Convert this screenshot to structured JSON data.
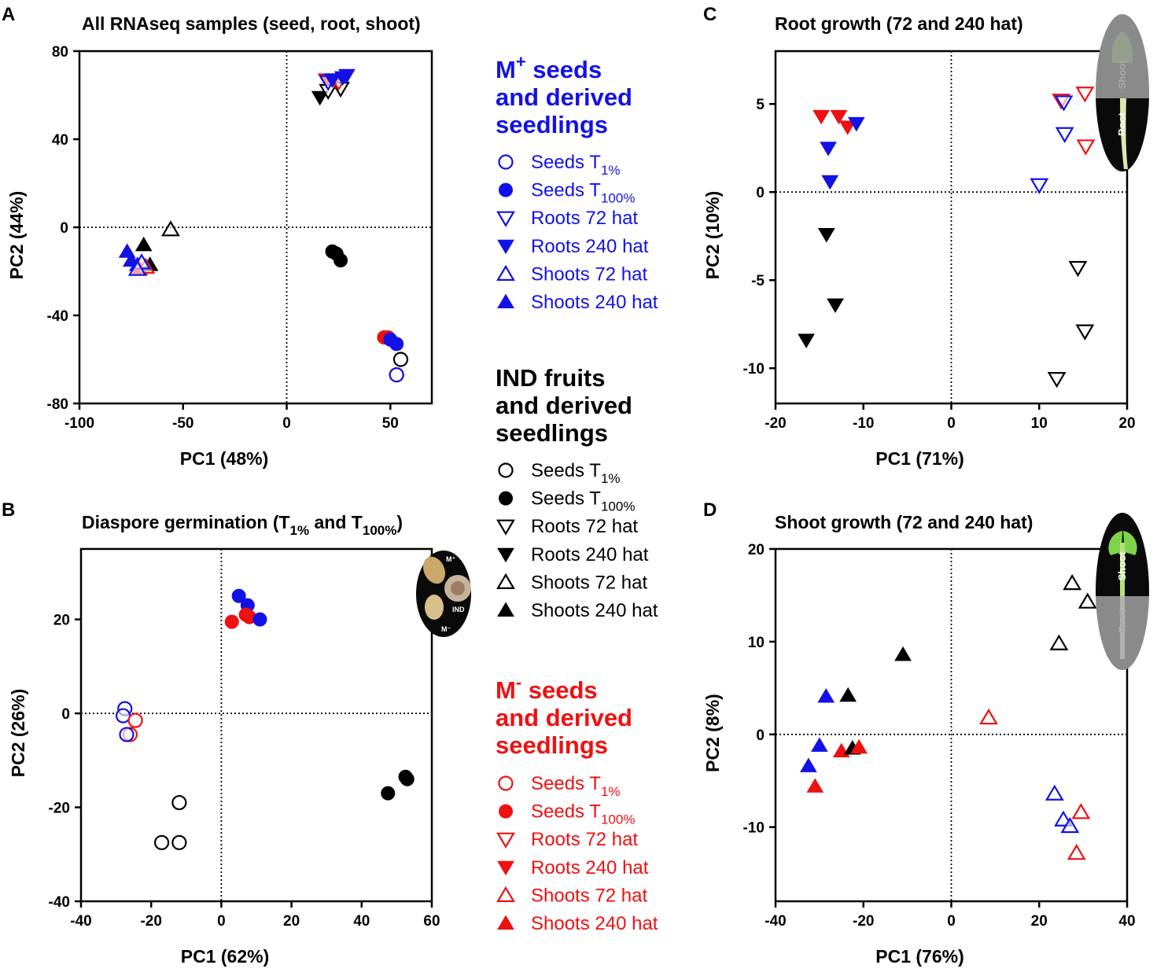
{
  "colors": {
    "mplus": "#1212e6",
    "mminus": "#ee1111",
    "ind": "#000000"
  },
  "panels": {
    "A": {
      "letter": "A",
      "title": "All RNAseq samples (seed, root, shoot)"
    },
    "B": {
      "letter": "B",
      "title_pre": "Diaspore germination (T",
      "title_sub1": "1%",
      "title_mid": " and T",
      "title_sub2": "100%",
      "title_post": ")"
    },
    "C": {
      "letter": "C",
      "title": "Root growth (72 and 240 hat)"
    },
    "D": {
      "letter": "D",
      "title": "Shoot growth (72 and 240 hat)"
    }
  },
  "insets": {
    "root_label": "Root",
    "shoot_label": "Shoot",
    "mplus_label": "M⁺",
    "ind_label": "IND",
    "mminus_label": "M⁻"
  },
  "legend": {
    "mplus": {
      "head1_pre": "M",
      "head1_sup": "+",
      "head1_post": " seeds",
      "head2": "and derived",
      "head3": "seedlings"
    },
    "ind": {
      "head1": "IND fruits",
      "head2": "and derived",
      "head3": "seedlings"
    },
    "mminus": {
      "head1_pre": "M",
      "head1_sup": "-",
      "head1_post": " seeds",
      "head2": "and derived",
      "head3": "seedlings"
    },
    "items": [
      {
        "marker": "circle-open",
        "pre": "Seeds T",
        "sub": "1%"
      },
      {
        "marker": "circle-filled",
        "pre": "Seeds T",
        "sub": "100%"
      },
      {
        "marker": "tri-down-open",
        "pre": "Roots 72 hat",
        "sub": ""
      },
      {
        "marker": "tri-down-filled",
        "pre": "Roots 240 hat",
        "sub": ""
      },
      {
        "marker": "tri-up-open",
        "pre": "Shoots 72 hat",
        "sub": ""
      },
      {
        "marker": "tri-up-filled",
        "pre": "Shoots 240 hat",
        "sub": ""
      }
    ]
  },
  "chart_data": [
    {
      "id": "A",
      "type": "scatter",
      "title": "All RNAseq samples (seed, root, shoot)",
      "xlabel": "PC1 (48%)",
      "ylabel": "PC2 (44%)",
      "xlim": [
        -100,
        70
      ],
      "ylim": [
        -80,
        80
      ],
      "xticks": [
        -100,
        -50,
        0,
        50
      ],
      "yticks": [
        -80,
        -40,
        0,
        40,
        80
      ],
      "points": [
        {
          "x": -56,
          "y": -1,
          "group": "ind",
          "marker": "tri-up-open"
        },
        {
          "x": -69,
          "y": -8,
          "group": "ind",
          "marker": "tri-up-filled"
        },
        {
          "x": -66,
          "y": -17,
          "group": "ind",
          "marker": "tri-up-filled"
        },
        {
          "x": -77,
          "y": -11,
          "group": "mplus",
          "marker": "tri-up-filled"
        },
        {
          "x": -75,
          "y": -15,
          "group": "mplus",
          "marker": "tri-up-filled"
        },
        {
          "x": -72,
          "y": -17,
          "group": "mplus",
          "marker": "tri-up-filled"
        },
        {
          "x": -71,
          "y": -19,
          "group": "mminus",
          "marker": "tri-up-filled"
        },
        {
          "x": -68,
          "y": -18,
          "group": "mminus",
          "marker": "tri-up-open"
        },
        {
          "x": -70,
          "y": -16,
          "group": "mplus",
          "marker": "tri-up-open"
        },
        {
          "x": -72,
          "y": -19,
          "group": "mplus",
          "marker": "tri-up-open"
        },
        {
          "x": 16,
          "y": 59,
          "group": "ind",
          "marker": "tri-down-filled"
        },
        {
          "x": 20,
          "y": 62,
          "group": "ind",
          "marker": "tri-down-open"
        },
        {
          "x": 26,
          "y": 63,
          "group": "ind",
          "marker": "tri-down-open"
        },
        {
          "x": 19,
          "y": 67,
          "group": "mminus",
          "marker": "tri-down-filled"
        },
        {
          "x": 23,
          "y": 67,
          "group": "mminus",
          "marker": "tri-down-filled"
        },
        {
          "x": 25,
          "y": 66,
          "group": "mminus",
          "marker": "tri-down-open"
        },
        {
          "x": 20,
          "y": 66,
          "group": "mplus",
          "marker": "tri-down-open"
        },
        {
          "x": 22,
          "y": 67,
          "group": "mplus",
          "marker": "tri-down-filled"
        },
        {
          "x": 27,
          "y": 68,
          "group": "mplus",
          "marker": "tri-down-filled"
        },
        {
          "x": 29,
          "y": 69,
          "group": "mplus",
          "marker": "tri-down-filled"
        },
        {
          "x": 22,
          "y": -11,
          "group": "ind",
          "marker": "circle-filled"
        },
        {
          "x": 24,
          "y": -12,
          "group": "ind",
          "marker": "circle-filled"
        },
        {
          "x": 26,
          "y": -15,
          "group": "ind",
          "marker": "circle-filled"
        },
        {
          "x": 47,
          "y": -50,
          "group": "mminus",
          "marker": "circle-filled"
        },
        {
          "x": 49,
          "y": -50,
          "group": "mminus",
          "marker": "circle-filled"
        },
        {
          "x": 50,
          "y": -51,
          "group": "mplus",
          "marker": "circle-filled"
        },
        {
          "x": 53,
          "y": -53,
          "group": "mplus",
          "marker": "circle-filled"
        },
        {
          "x": 55,
          "y": -60,
          "group": "ind",
          "marker": "circle-open"
        },
        {
          "x": 53,
          "y": -67,
          "group": "mminus",
          "marker": "circle-open"
        },
        {
          "x": 53,
          "y": -67,
          "group": "mplus",
          "marker": "circle-open"
        }
      ]
    },
    {
      "id": "B",
      "type": "scatter",
      "title": "Diaspore germination (T1% and T100%)",
      "xlabel": "PC1 (62%)",
      "ylabel": "PC2 (26%)",
      "xlim": [
        -40,
        60
      ],
      "ylim": [
        -40,
        35
      ],
      "xticks": [
        -40,
        -20,
        0,
        20,
        40,
        60
      ],
      "yticks": [
        -40,
        -20,
        0,
        20
      ],
      "points": [
        {
          "x": -27.5,
          "y": 1,
          "group": "mplus",
          "marker": "circle-open"
        },
        {
          "x": -28,
          "y": -0.5,
          "group": "mplus",
          "marker": "circle-open"
        },
        {
          "x": -24.5,
          "y": -1.5,
          "group": "mminus",
          "marker": "circle-open"
        },
        {
          "x": -26,
          "y": -4.5,
          "group": "mminus",
          "marker": "circle-open"
        },
        {
          "x": -27,
          "y": -4.5,
          "group": "mplus",
          "marker": "circle-open"
        },
        {
          "x": -12,
          "y": -19,
          "group": "ind",
          "marker": "circle-open"
        },
        {
          "x": -17,
          "y": -27.5,
          "group": "ind",
          "marker": "circle-open"
        },
        {
          "x": -12,
          "y": -27.5,
          "group": "ind",
          "marker": "circle-open"
        },
        {
          "x": 5,
          "y": 25,
          "group": "mplus",
          "marker": "circle-filled"
        },
        {
          "x": 7.5,
          "y": 23,
          "group": "mplus",
          "marker": "circle-filled"
        },
        {
          "x": 3,
          "y": 19.5,
          "group": "mminus",
          "marker": "circle-filled"
        },
        {
          "x": 7,
          "y": 21,
          "group": "mminus",
          "marker": "circle-filled"
        },
        {
          "x": 8,
          "y": 20.5,
          "group": "mminus",
          "marker": "circle-filled"
        },
        {
          "x": 11,
          "y": 20,
          "group": "mplus",
          "marker": "circle-filled"
        },
        {
          "x": 47.5,
          "y": -17,
          "group": "ind",
          "marker": "circle-filled"
        },
        {
          "x": 52.5,
          "y": -13.5,
          "group": "ind",
          "marker": "circle-filled"
        },
        {
          "x": 53,
          "y": -14,
          "group": "ind",
          "marker": "circle-filled"
        }
      ]
    },
    {
      "id": "C",
      "type": "scatter",
      "title": "Root growth (72 and 240 hat)",
      "xlabel": "PC1 (71%)",
      "ylabel": "PC2 (10%)",
      "xlim": [
        -20,
        20
      ],
      "ylim": [
        -12,
        8
      ],
      "xticks": [
        -20,
        -10,
        0,
        10,
        20
      ],
      "yticks": [
        -10,
        -5,
        0,
        5
      ],
      "points": [
        {
          "x": -14.8,
          "y": 4.3,
          "group": "mminus",
          "marker": "tri-down-filled"
        },
        {
          "x": -12.8,
          "y": 4.3,
          "group": "mminus",
          "marker": "tri-down-filled"
        },
        {
          "x": -11.8,
          "y": 3.7,
          "group": "mminus",
          "marker": "tri-down-filled"
        },
        {
          "x": -10.8,
          "y": 3.9,
          "group": "mplus",
          "marker": "tri-down-filled"
        },
        {
          "x": -14,
          "y": 2.5,
          "group": "mplus",
          "marker": "tri-down-filled"
        },
        {
          "x": -13.8,
          "y": 0.6,
          "group": "mplus",
          "marker": "tri-down-filled"
        },
        {
          "x": -14.2,
          "y": -2.4,
          "group": "ind",
          "marker": "tri-down-filled"
        },
        {
          "x": -13.2,
          "y": -6.4,
          "group": "ind",
          "marker": "tri-down-filled"
        },
        {
          "x": -16.5,
          "y": -8.4,
          "group": "ind",
          "marker": "tri-down-filled"
        },
        {
          "x": 12.5,
          "y": 5.2,
          "group": "mminus",
          "marker": "tri-down-open"
        },
        {
          "x": 12.8,
          "y": 5.1,
          "group": "mplus",
          "marker": "tri-down-open"
        },
        {
          "x": 15.2,
          "y": 5.6,
          "group": "mminus",
          "marker": "tri-down-open"
        },
        {
          "x": 15.3,
          "y": 2.6,
          "group": "mminus",
          "marker": "tri-down-open"
        },
        {
          "x": 12.9,
          "y": 3.3,
          "group": "mplus",
          "marker": "tri-down-open"
        },
        {
          "x": 10,
          "y": 0.4,
          "group": "mplus",
          "marker": "tri-down-open"
        },
        {
          "x": 14.4,
          "y": -4.3,
          "group": "ind",
          "marker": "tri-down-open"
        },
        {
          "x": 15.2,
          "y": -7.9,
          "group": "ind",
          "marker": "tri-down-open"
        },
        {
          "x": 12,
          "y": -10.6,
          "group": "ind",
          "marker": "tri-down-open"
        }
      ]
    },
    {
      "id": "D",
      "type": "scatter",
      "title": "Shoot growth (72 and 240 hat)",
      "xlabel": "PC1 (76%)",
      "ylabel": "PC2 (8%)",
      "xlim": [
        -40,
        40
      ],
      "ylim": [
        -18,
        20
      ],
      "xticks": [
        -40,
        -20,
        0,
        20,
        40
      ],
      "yticks": [
        -10,
        0,
        10,
        20
      ],
      "points": [
        {
          "x": 27.5,
          "y": 16.3,
          "group": "ind",
          "marker": "tri-up-open"
        },
        {
          "x": 31,
          "y": 14.3,
          "group": "ind",
          "marker": "tri-up-open"
        },
        {
          "x": 24.5,
          "y": 9.8,
          "group": "ind",
          "marker": "tri-up-open"
        },
        {
          "x": 8.5,
          "y": 1.8,
          "group": "mminus",
          "marker": "tri-up-open"
        },
        {
          "x": 23.5,
          "y": -6.4,
          "group": "mplus",
          "marker": "tri-up-open"
        },
        {
          "x": 25.5,
          "y": -9.2,
          "group": "mplus",
          "marker": "tri-up-open"
        },
        {
          "x": 27,
          "y": -9.9,
          "group": "mplus",
          "marker": "tri-up-open"
        },
        {
          "x": 29.5,
          "y": -8.4,
          "group": "mminus",
          "marker": "tri-up-open"
        },
        {
          "x": 28.5,
          "y": -12.8,
          "group": "mminus",
          "marker": "tri-up-open"
        },
        {
          "x": -11,
          "y": 8.6,
          "group": "ind",
          "marker": "tri-up-filled"
        },
        {
          "x": -28.5,
          "y": 4.1,
          "group": "mplus",
          "marker": "tri-up-filled"
        },
        {
          "x": -23.5,
          "y": 4.2,
          "group": "ind",
          "marker": "tri-up-filled"
        },
        {
          "x": -30,
          "y": -1.2,
          "group": "mplus",
          "marker": "tri-up-filled"
        },
        {
          "x": -32.5,
          "y": -3.4,
          "group": "mplus",
          "marker": "tri-up-filled"
        },
        {
          "x": -31,
          "y": -5.6,
          "group": "mminus",
          "marker": "tri-up-filled"
        },
        {
          "x": -25,
          "y": -1.8,
          "group": "mminus",
          "marker": "tri-up-filled"
        },
        {
          "x": -22.5,
          "y": -1.5,
          "group": "ind",
          "marker": "tri-up-filled"
        },
        {
          "x": -21,
          "y": -1.4,
          "group": "mminus",
          "marker": "tri-up-filled"
        }
      ]
    }
  ]
}
